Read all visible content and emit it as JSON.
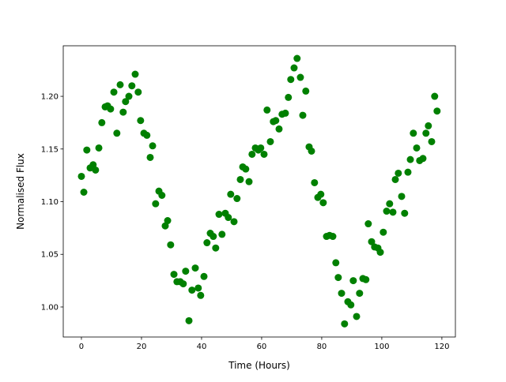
{
  "chart_data": {
    "type": "scatter",
    "title": "",
    "xlabel": "Time (Hours)",
    "ylabel": "Normalised Flux",
    "xlim": [
      -6.05,
      124.5
    ],
    "ylim": [
      0.9715,
      1.248
    ],
    "xticks": [
      0,
      20,
      40,
      60,
      80,
      100,
      120
    ],
    "yticks": [
      1.0,
      1.05,
      1.1,
      1.15,
      1.2
    ],
    "xtick_labels": [
      "0",
      "20",
      "40",
      "60",
      "80",
      "100",
      "120"
    ],
    "ytick_labels": [
      "1.00",
      "1.05",
      "1.10",
      "1.15",
      "1.20"
    ],
    "grid": false,
    "marker_color": "#008000",
    "x": [
      0,
      0.8,
      1.8,
      2.9,
      3.9,
      4.7,
      5.8,
      6.8,
      7.9,
      8.7,
      9.7,
      10.8,
      11.8,
      12.9,
      13.9,
      14.7,
      15.8,
      16.8,
      17.9,
      18.9,
      19.7,
      20.8,
      21.8,
      22.9,
      23.7,
      24.7,
      25.8,
      26.8,
      27.9,
      28.7,
      29.7,
      30.8,
      31.8,
      32.9,
      33.9,
      34.7,
      35.8,
      36.8,
      37.9,
      38.9,
      39.7,
      40.8,
      41.8,
      42.9,
      43.9,
      44.7,
      45.8,
      46.8,
      47.9,
      48.9,
      49.7,
      50.8,
      51.8,
      52.9,
      53.7,
      54.7,
      55.8,
      56.8,
      57.9,
      58.9,
      59.7,
      60.8,
      61.8,
      62.9,
      63.9,
      64.7,
      65.8,
      66.8,
      67.9,
      68.9,
      69.7,
      70.8,
      71.8,
      72.9,
      73.7,
      74.7,
      75.8,
      76.6,
      77.6,
      78.7,
      79.7,
      80.5,
      81.6,
      82.6,
      83.7,
      84.7,
      85.5,
      86.6,
      87.6,
      88.7,
      89.7,
      90.5,
      91.6,
      92.6,
      93.7,
      94.7,
      95.5,
      96.6,
      97.6,
      98.7,
      99.5,
      100.5,
      101.6,
      102.6,
      103.7,
      104.5,
      105.5,
      106.6,
      107.6,
      108.7,
      109.5,
      110.5,
      111.6,
      112.6,
      113.7,
      114.7,
      115.5,
      116.6,
      117.6,
      118.4
    ],
    "y": [
      1.124,
      1.109,
      1.149,
      1.132,
      1.135,
      1.13,
      1.151,
      1.175,
      1.19,
      1.191,
      1.188,
      1.204,
      1.165,
      1.211,
      1.185,
      1.195,
      1.2,
      1.21,
      1.221,
      1.204,
      1.177,
      1.165,
      1.163,
      1.142,
      1.153,
      1.098,
      1.11,
      1.106,
      1.077,
      1.082,
      1.059,
      1.031,
      1.024,
      1.024,
      1.022,
      1.034,
      0.987,
      1.016,
      1.037,
      1.018,
      1.011,
      1.029,
      1.061,
      1.07,
      1.067,
      1.056,
      1.088,
      1.069,
      1.089,
      1.085,
      1.107,
      1.081,
      1.103,
      1.121,
      1.133,
      1.131,
      1.119,
      1.145,
      1.151,
      1.149,
      1.151,
      1.145,
      1.187,
      1.157,
      1.176,
      1.177,
      1.169,
      1.183,
      1.184,
      1.199,
      1.216,
      1.227,
      1.236,
      1.218,
      1.182,
      1.205,
      1.152,
      1.148,
      1.118,
      1.104,
      1.107,
      1.099,
      1.067,
      1.068,
      1.067,
      1.042,
      1.028,
      1.013,
      0.984,
      1.005,
      1.002,
      1.025,
      0.991,
      1.013,
      1.027,
      1.026,
      1.079,
      1.062,
      1.057,
      1.056,
      1.052,
      1.071,
      1.091,
      1.098,
      1.09,
      1.121,
      1.127,
      1.105,
      1.089,
      1.128,
      1.14,
      1.165,
      1.151,
      1.139,
      1.141,
      1.165,
      1.172,
      1.157,
      1.2,
      1.186
    ]
  }
}
